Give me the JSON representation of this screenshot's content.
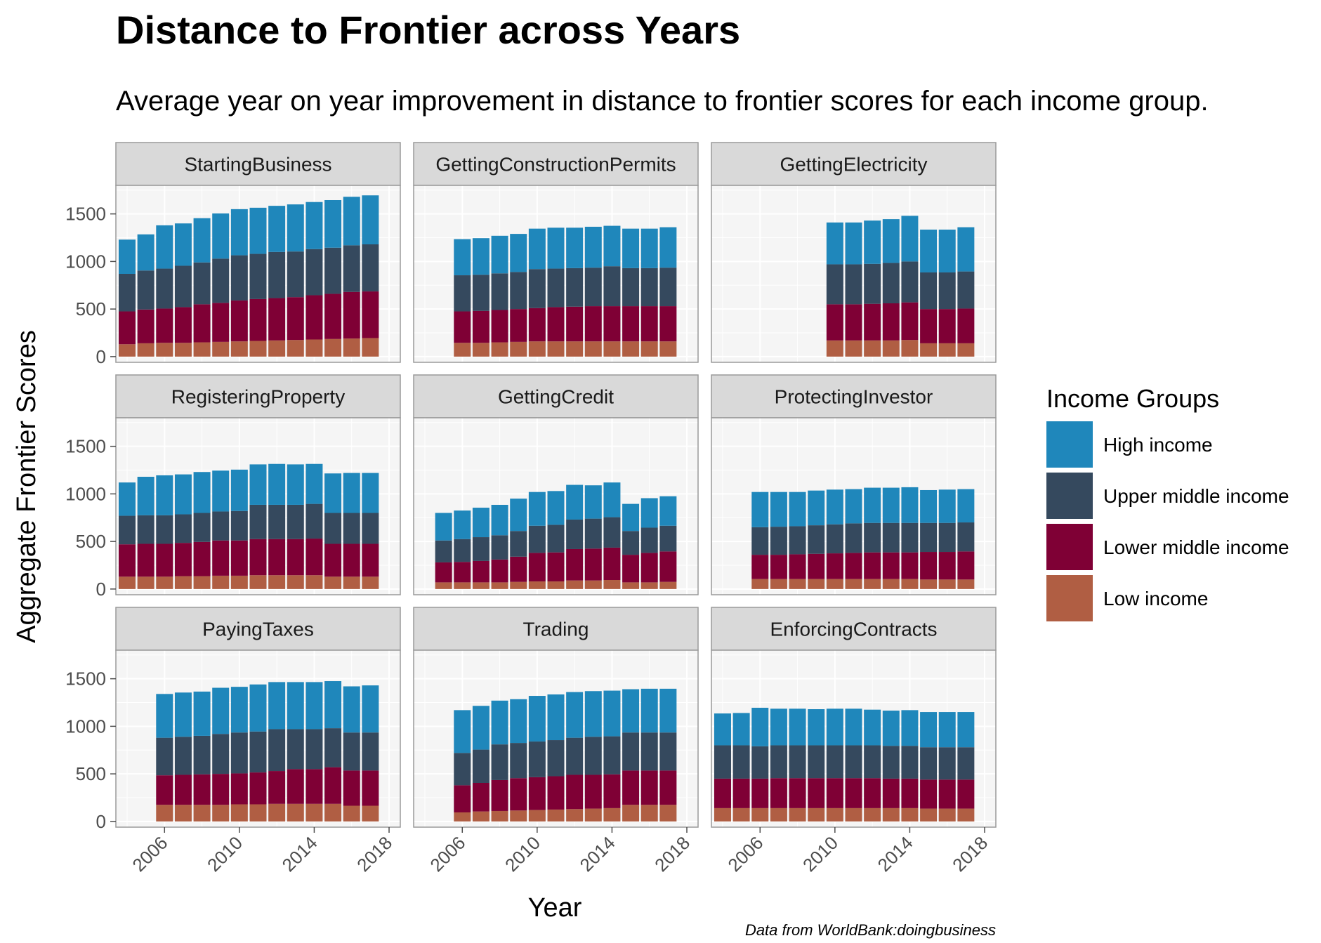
{
  "chart_data": {
    "type": "bar",
    "stacked": true,
    "title": "Distance to Frontier across Years",
    "subtitle": "Average year on year improvement in distance to frontier scores for each income group.",
    "xlabel": "Year",
    "ylabel": "Aggregate Frontier Scores",
    "caption": "Data from WorldBank:doingbusiness",
    "xlim": [
      2003.4,
      2018.6
    ],
    "ylim": [
      -60,
      1800
    ],
    "x_ticks": [
      2006,
      2010,
      2014,
      2018
    ],
    "y_ticks": [
      0,
      500,
      1000,
      1500
    ],
    "x_tick_labels": [
      "2006",
      "2010",
      "2014",
      "2018"
    ],
    "y_tick_labels": [
      "0",
      "500",
      "1000",
      "1500"
    ],
    "legend": {
      "title": "Income Groups",
      "position": "right",
      "entries": [
        "High income",
        "Upper middle income",
        "Lower middle income",
        "Low income"
      ]
    },
    "stack_order": [
      "Low income",
      "Lower middle income",
      "Upper middle income",
      "High income"
    ],
    "colors": {
      "High income": "#1f87bb",
      "Upper middle income": "#35495e",
      "Lower middle income": "#7f0035",
      "Low income": "#b05e43"
    },
    "panels": [
      {
        "name": "StartingBusiness",
        "years": [
          2004,
          2005,
          2006,
          2007,
          2008,
          2009,
          2010,
          2011,
          2012,
          2013,
          2014,
          2015,
          2016,
          2017
        ],
        "series": [
          {
            "name": "Low income",
            "values": [
              130,
              140,
              145,
              145,
              150,
              155,
              160,
              165,
              170,
              175,
              180,
              185,
              190,
              195
            ]
          },
          {
            "name": "Lower middle income",
            "values": [
              345,
              355,
              360,
              375,
              400,
              410,
              430,
              440,
              445,
              450,
              465,
              475,
              490,
              490
            ]
          },
          {
            "name": "Upper middle income",
            "values": [
              395,
              410,
              420,
              435,
              440,
              465,
              475,
              475,
              485,
              480,
              485,
              485,
              490,
              495
            ]
          },
          {
            "name": "High income",
            "values": [
              360,
              380,
              455,
              445,
              465,
              475,
              485,
              485,
              485,
              495,
              495,
              500,
              510,
              515
            ]
          }
        ]
      },
      {
        "name": "GettingConstructionPermits",
        "years": [
          2006,
          2007,
          2008,
          2009,
          2010,
          2011,
          2012,
          2013,
          2014,
          2015,
          2016,
          2017
        ],
        "series": [
          {
            "name": "Low income",
            "values": [
              145,
              145,
              150,
              155,
              160,
              160,
              160,
              160,
              160,
              160,
              160,
              160
            ]
          },
          {
            "name": "Lower middle income",
            "values": [
              330,
              335,
              340,
              345,
              350,
              360,
              365,
              370,
              370,
              370,
              370,
              370
            ]
          },
          {
            "name": "Upper middle income",
            "values": [
              380,
              380,
              385,
              390,
              410,
              405,
              405,
              405,
              420,
              400,
              400,
              405
            ]
          },
          {
            "name": "High income",
            "values": [
              380,
              385,
              395,
              400,
              425,
              430,
              425,
              430,
              425,
              415,
              415,
              425
            ]
          }
        ]
      },
      {
        "name": "GettingElectricity",
        "years": [
          2010,
          2011,
          2012,
          2013,
          2014,
          2015,
          2016,
          2017
        ],
        "series": [
          {
            "name": "Low income",
            "values": [
              170,
              170,
              170,
              170,
              175,
              140,
              140,
              140
            ]
          },
          {
            "name": "Lower middle income",
            "values": [
              380,
              380,
              385,
              390,
              395,
              360,
              360,
              365
            ]
          },
          {
            "name": "Upper middle income",
            "values": [
              420,
              420,
              420,
              425,
              430,
              385,
              385,
              390
            ]
          },
          {
            "name": "High income",
            "values": [
              440,
              440,
              455,
              460,
              480,
              450,
              450,
              465
            ]
          }
        ]
      },
      {
        "name": "RegisteringProperty",
        "years": [
          2004,
          2005,
          2006,
          2007,
          2008,
          2009,
          2010,
          2011,
          2012,
          2013,
          2014,
          2015,
          2016,
          2017
        ],
        "series": [
          {
            "name": "Low income",
            "values": [
              130,
              130,
              130,
              135,
              135,
              140,
              140,
              145,
              145,
              145,
              145,
              130,
              130,
              130
            ]
          },
          {
            "name": "Lower middle income",
            "values": [
              340,
              345,
              345,
              350,
              360,
              370,
              370,
              380,
              380,
              380,
              385,
              345,
              345,
              345
            ]
          },
          {
            "name": "Upper middle income",
            "values": [
              300,
              300,
              300,
              300,
              305,
              305,
              310,
              360,
              360,
              360,
              365,
              325,
              325,
              325
            ]
          },
          {
            "name": "High income",
            "values": [
              350,
              405,
              420,
              420,
              430,
              430,
              435,
              425,
              430,
              425,
              420,
              415,
              420,
              420
            ]
          }
        ]
      },
      {
        "name": "GettingCredit",
        "years": [
          2005,
          2006,
          2007,
          2008,
          2009,
          2010,
          2011,
          2012,
          2013,
          2014,
          2015,
          2016,
          2017
        ],
        "series": [
          {
            "name": "Low income",
            "values": [
              70,
              70,
              70,
              70,
              75,
              80,
              80,
              90,
              90,
              95,
              70,
              70,
              75
            ]
          },
          {
            "name": "Lower middle income",
            "values": [
              210,
              215,
              225,
              240,
              265,
              300,
              305,
              330,
              335,
              340,
              290,
              310,
              320
            ]
          },
          {
            "name": "Upper middle income",
            "values": [
              230,
              240,
              250,
              255,
              270,
              285,
              290,
              310,
              315,
              320,
              250,
              265,
              270
            ]
          },
          {
            "name": "High income",
            "values": [
              290,
              300,
              310,
              320,
              340,
              355,
              355,
              365,
              350,
              365,
              285,
              310,
              310
            ]
          }
        ]
      },
      {
        "name": "ProtectingInvestor",
        "years": [
          2006,
          2007,
          2008,
          2009,
          2010,
          2011,
          2012,
          2013,
          2014,
          2015,
          2016,
          2017
        ],
        "series": [
          {
            "name": "Low income",
            "values": [
              105,
              105,
              105,
              105,
              105,
              105,
              105,
              105,
              105,
              100,
              100,
              100
            ]
          },
          {
            "name": "Lower middle income",
            "values": [
              255,
              255,
              260,
              265,
              270,
              275,
              280,
              280,
              280,
              290,
              290,
              295
            ]
          },
          {
            "name": "Upper middle income",
            "values": [
              290,
              295,
              295,
              300,
              305,
              310,
              310,
              310,
              310,
              305,
              305,
              305
            ]
          },
          {
            "name": "High income",
            "values": [
              370,
              365,
              360,
              365,
              365,
              360,
              370,
              370,
              375,
              345,
              350,
              350
            ]
          }
        ]
      },
      {
        "name": "PayingTaxes",
        "years": [
          2006,
          2007,
          2008,
          2009,
          2010,
          2011,
          2012,
          2013,
          2014,
          2015,
          2016,
          2017
        ],
        "series": [
          {
            "name": "Low income",
            "values": [
              175,
              175,
              175,
              175,
              180,
              180,
              185,
              185,
              185,
              185,
              165,
              165
            ]
          },
          {
            "name": "Lower middle income",
            "values": [
              310,
              315,
              320,
              325,
              325,
              335,
              345,
              365,
              365,
              385,
              370,
              370
            ]
          },
          {
            "name": "Upper middle income",
            "values": [
              395,
              400,
              405,
              420,
              430,
              430,
              440,
              420,
              420,
              410,
              400,
              400
            ]
          },
          {
            "name": "High income",
            "values": [
              460,
              465,
              465,
              485,
              480,
              495,
              495,
              495,
              495,
              495,
              485,
              495
            ]
          }
        ]
      },
      {
        "name": "Trading",
        "years": [
          2006,
          2007,
          2008,
          2009,
          2010,
          2011,
          2012,
          2013,
          2014,
          2015,
          2016,
          2017
        ],
        "series": [
          {
            "name": "Low income",
            "values": [
              95,
              105,
              110,
              115,
              120,
              125,
              130,
              135,
              140,
              175,
              175,
              175
            ]
          },
          {
            "name": "Lower middle income",
            "values": [
              285,
              300,
              325,
              340,
              345,
              350,
              360,
              355,
              355,
              360,
              360,
              360
            ]
          },
          {
            "name": "Upper middle income",
            "values": [
              340,
              350,
              375,
              370,
              375,
              380,
              390,
              400,
              400,
              400,
              400,
              400
            ]
          },
          {
            "name": "High income",
            "values": [
              450,
              460,
              460,
              460,
              480,
              480,
              480,
              480,
              480,
              455,
              460,
              460
            ]
          }
        ]
      },
      {
        "name": "EnforcingContracts",
        "years": [
          2004,
          2005,
          2006,
          2007,
          2008,
          2009,
          2010,
          2011,
          2012,
          2013,
          2014,
          2015,
          2016,
          2017
        ],
        "series": [
          {
            "name": "Low income",
            "values": [
              140,
              140,
              140,
              140,
              140,
              140,
              140,
              140,
              140,
              140,
              140,
              135,
              135,
              135
            ]
          },
          {
            "name": "Lower middle income",
            "values": [
              310,
              310,
              310,
              315,
              315,
              315,
              315,
              315,
              315,
              310,
              310,
              305,
              305,
              305
            ]
          },
          {
            "name": "Upper middle income",
            "values": [
              350,
              350,
              340,
              345,
              345,
              345,
              345,
              345,
              345,
              345,
              345,
              340,
              340,
              340
            ]
          },
          {
            "name": "High income",
            "values": [
              335,
              340,
              405,
              385,
              385,
              380,
              385,
              385,
              375,
              370,
              375,
              370,
              370,
              370
            ]
          }
        ]
      }
    ]
  }
}
